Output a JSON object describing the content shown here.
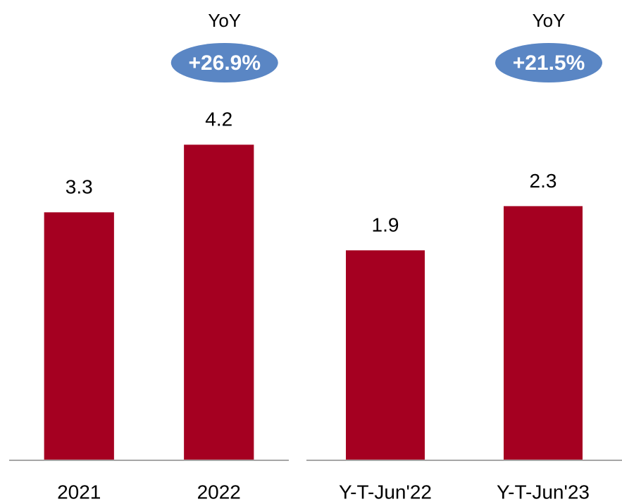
{
  "chart_data": [
    {
      "type": "bar",
      "categories": [
        "2021",
        "2022"
      ],
      "values": [
        3.3,
        4.2
      ],
      "color": "#a50021",
      "ylim": [
        0,
        5
      ],
      "annotation": {
        "label": "YoY",
        "text": "+26.9%",
        "color": "#5a86c4"
      }
    },
    {
      "type": "bar",
      "categories": [
        "Y-T-Jun'22",
        "Y-T-Jun'23"
      ],
      "values": [
        1.9,
        2.3
      ],
      "color": "#a50021",
      "ylim": [
        0,
        3.4
      ],
      "annotation": {
        "label": "YoY",
        "text": "+21.5%",
        "color": "#5a86c4"
      }
    }
  ]
}
